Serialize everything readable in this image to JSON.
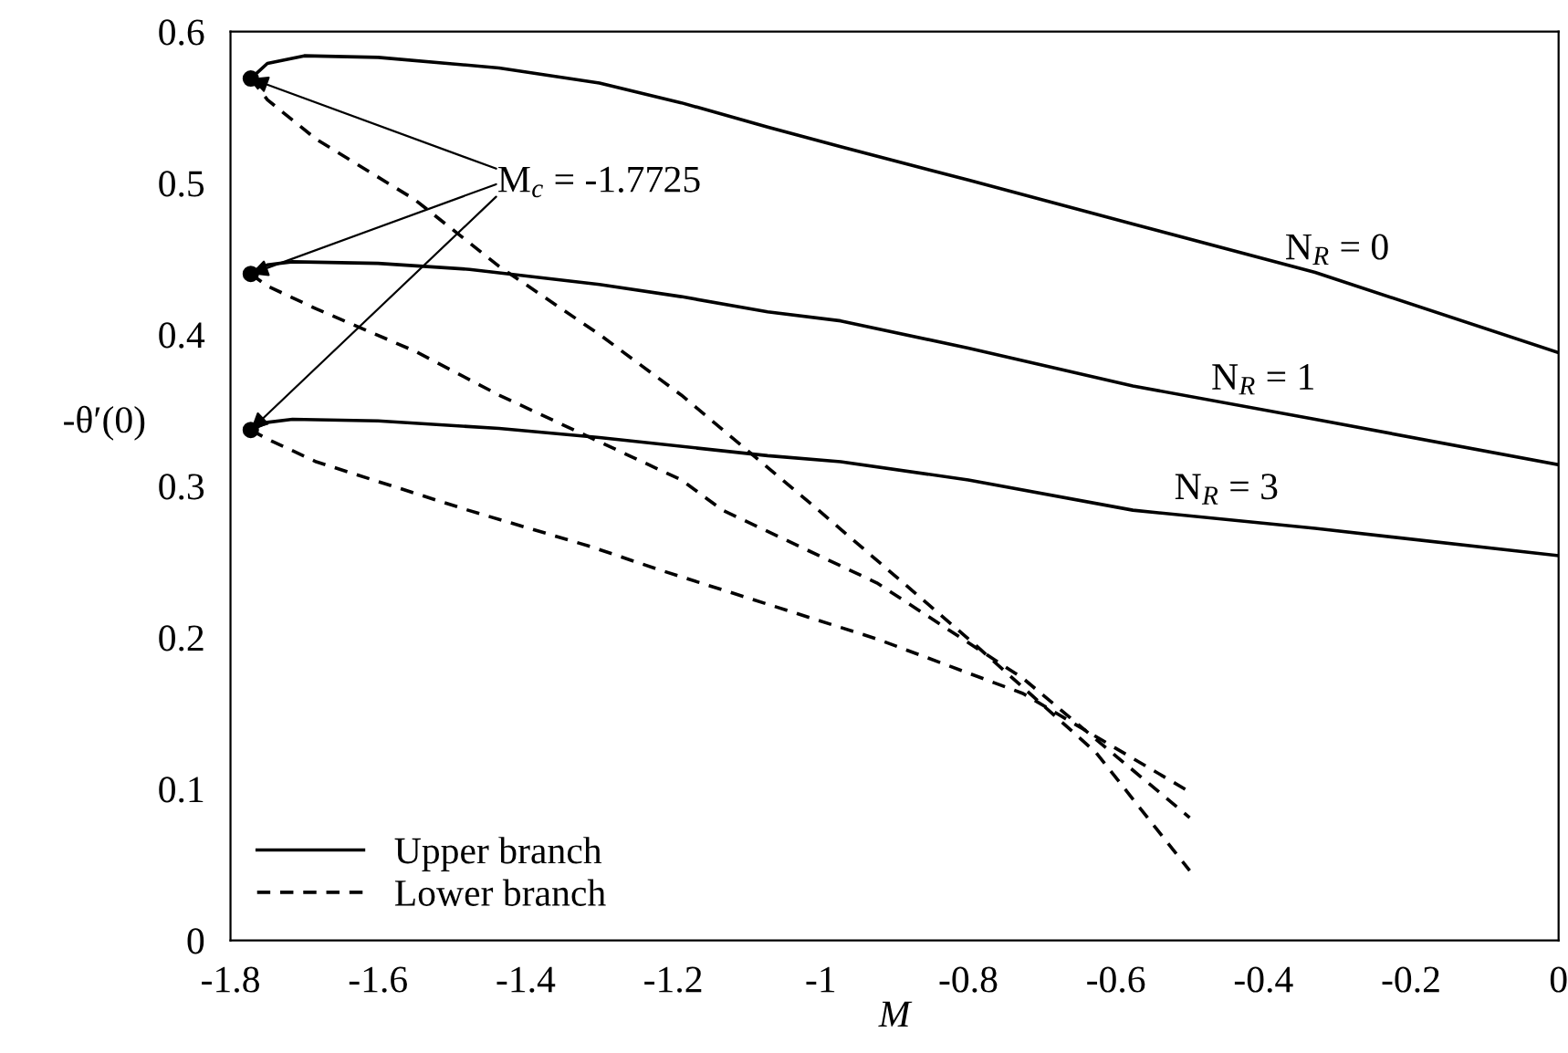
{
  "chart_data": {
    "type": "line",
    "xlabel": "M",
    "ylabel": "-θ′(0)",
    "xlim": [
      -1.8,
      0
    ],
    "ylim": [
      0,
      0.6
    ],
    "xticks": [
      -1.8,
      -1.6,
      -1.4,
      -1.2,
      -1,
      -0.8,
      -0.6,
      -0.4,
      -0.2,
      0
    ],
    "yticks": [
      0,
      0.1,
      0.2,
      0.3,
      0.4,
      0.5,
      0.6
    ],
    "grid": false,
    "legend": "bottom left",
    "series": [
      {
        "name": "Upper branch",
        "color": "#000000",
        "line_style": "solid",
        "x": [
          -1.7725,
          -1.75,
          -1.7,
          -1.6,
          -1.436,
          -1.3,
          -1.189,
          -1.072,
          -0.973,
          -0.8,
          -0.577,
          -0.33,
          0
        ],
        "values": [
          0.569,
          0.579,
          0.584,
          0.583,
          0.576,
          0.566,
          0.553,
          0.537,
          0.524,
          0.502,
          0.473,
          0.441,
          0.388
        ]
      },
      {
        "color": "#000000",
        "line_style": "solid",
        "x": [
          -1.7725,
          -1.75,
          -1.716,
          -1.6,
          -1.476,
          -1.3,
          -1.189,
          -1.072,
          -0.973,
          -0.8,
          -0.577,
          -0.33,
          0
        ],
        "values": [
          0.44,
          0.446,
          0.448,
          0.447,
          0.443,
          0.433,
          0.425,
          0.415,
          0.409,
          0.391,
          0.366,
          0.344,
          0.314
        ]
      },
      {
        "color": "#000000",
        "line_style": "solid",
        "x": [
          -1.7725,
          -1.75,
          -1.716,
          -1.6,
          -1.436,
          -1.3,
          -1.072,
          -0.973,
          -0.8,
          -0.577,
          -0.33,
          0
        ],
        "values": [
          0.337,
          0.342,
          0.344,
          0.343,
          0.338,
          0.332,
          0.32,
          0.316,
          0.304,
          0.284,
          0.272,
          0.254
        ]
      },
      {
        "name": "Lower branch",
        "color": "#000000",
        "line_style": "dashed",
        "x": [
          -1.7725,
          -1.75,
          -1.684,
          -1.55,
          -1.436,
          -1.3,
          -1.189,
          -1.003,
          -0.795,
          -0.627,
          -0.5
        ],
        "values": [
          0.569,
          0.555,
          0.529,
          0.489,
          0.445,
          0.4,
          0.36,
          0.284,
          0.197,
          0.124,
          0.046
        ]
      },
      {
        "color": "#000000",
        "line_style": "dashed",
        "x": [
          -1.7725,
          -1.75,
          -1.684,
          -1.55,
          -1.436,
          -1.189,
          -1.133,
          -0.924,
          -0.726,
          -0.5
        ],
        "values": [
          0.44,
          0.432,
          0.417,
          0.389,
          0.36,
          0.304,
          0.284,
          0.236,
          0.173,
          0.081
        ]
      },
      {
        "color": "#000000",
        "line_style": "dashed",
        "x": [
          -1.7725,
          -1.75,
          -1.684,
          -1.478,
          -1.312,
          -1.221,
          -0.924,
          -0.726,
          -0.5
        ],
        "values": [
          0.337,
          0.331,
          0.316,
          0.284,
          0.26,
          0.245,
          0.199,
          0.163,
          0.098
        ]
      },
      {
        "type": "scatter",
        "color": "#000000",
        "marker": "circle",
        "x": [
          -1.7725,
          -1.7725,
          -1.7725
        ],
        "values": [
          0.569,
          0.44,
          0.337
        ]
      }
    ],
    "annotations": [
      "N$_{R}$ = 0",
      "N$_{R}$ = 1",
      "N$_{R}$ = 3",
      {
        "text": "M$_{c}$ = -1.7725",
        "x": -1.7725,
        "y": 0.44
      }
    ]
  }
}
